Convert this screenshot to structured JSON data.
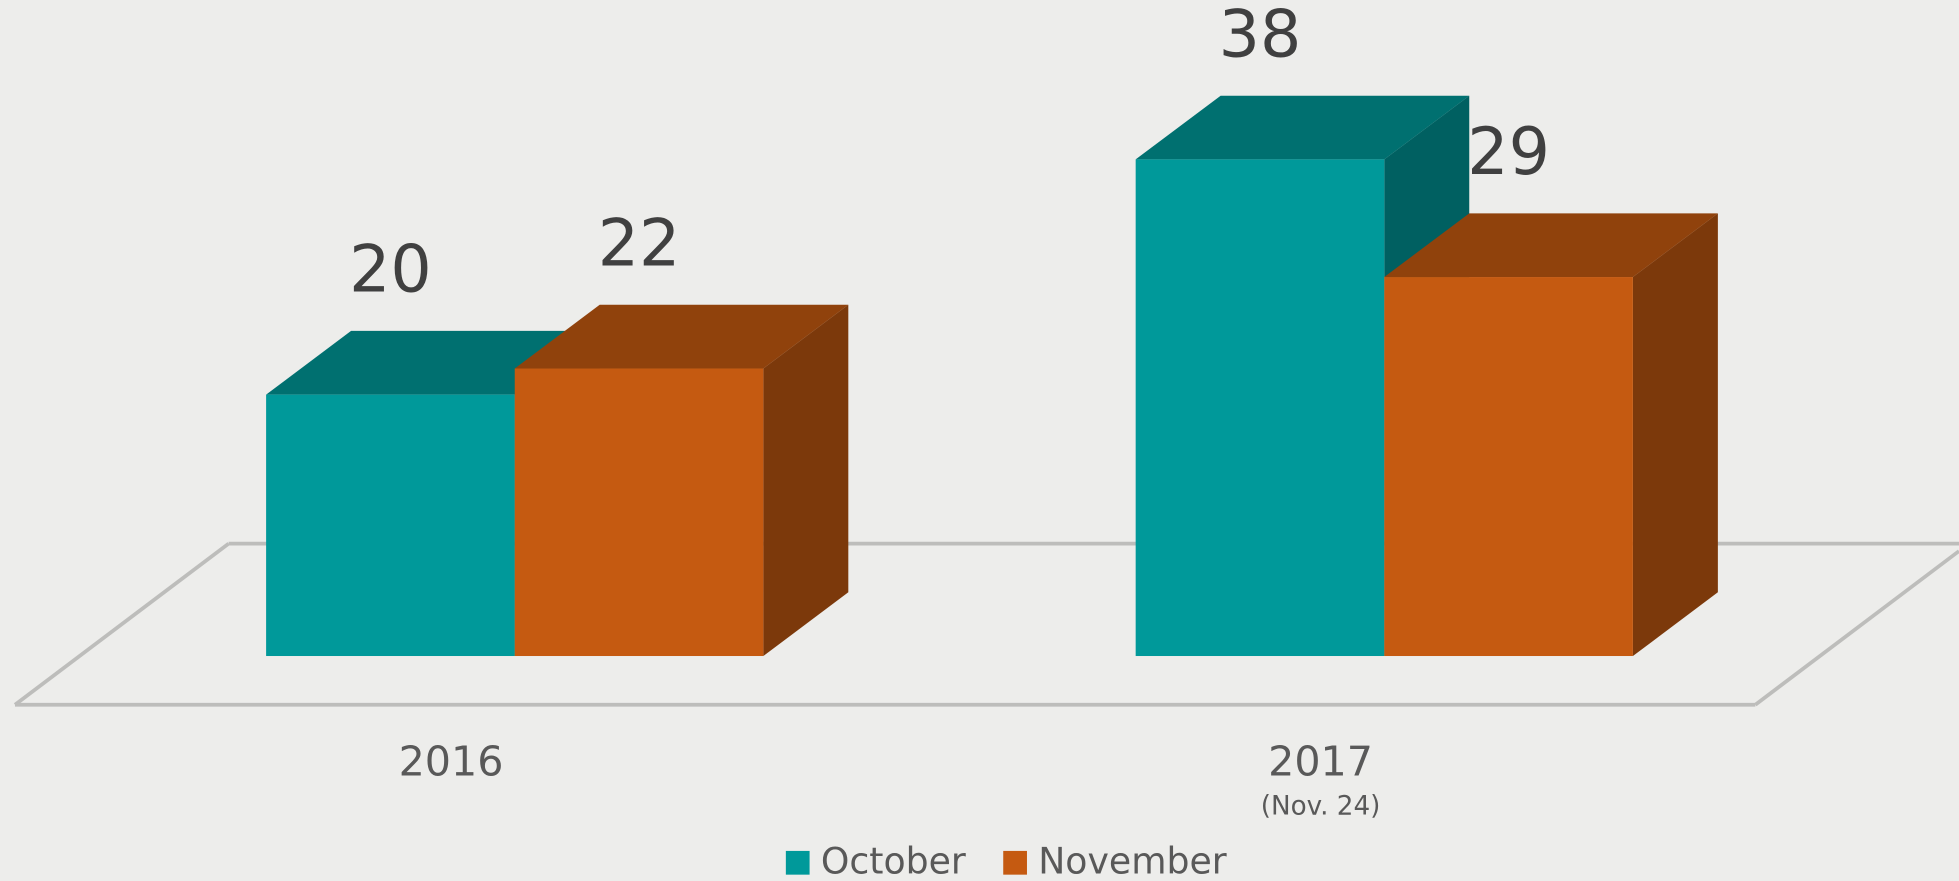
{
  "chart_data": {
    "type": "bar3d",
    "categories": [
      "2016",
      "2017"
    ],
    "category_sublabels": [
      null,
      "(Nov. 24)"
    ],
    "series": [
      {
        "name": "October",
        "color": "#00999a",
        "values": [
          20,
          38
        ]
      },
      {
        "name": "November",
        "color": "#c55a11",
        "values": [
          22,
          29
        ]
      }
    ],
    "legend": "bottom"
  }
}
